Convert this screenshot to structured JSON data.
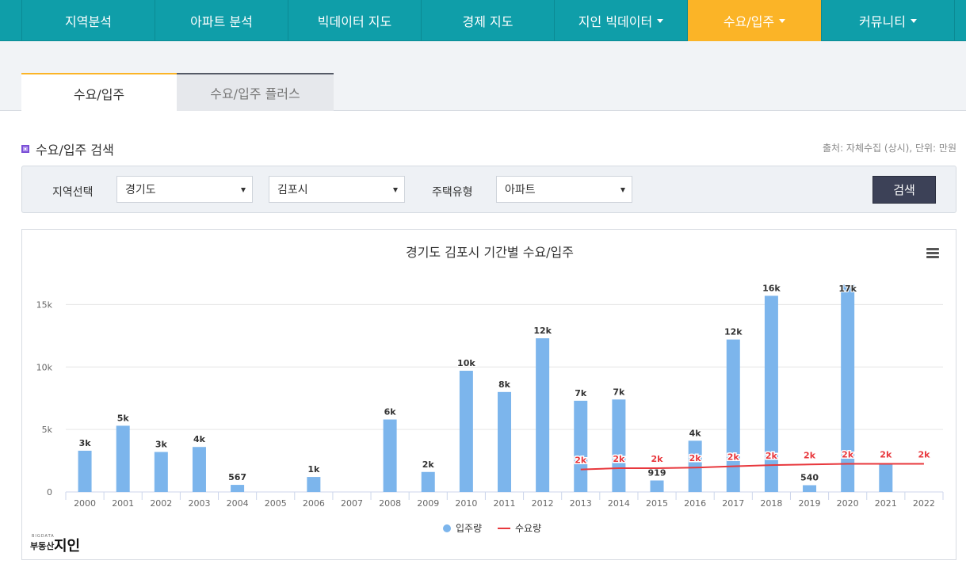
{
  "nav": {
    "items": [
      {
        "label": "지역분석",
        "dropdown": false,
        "active": false
      },
      {
        "label": "아파트 분석",
        "dropdown": false,
        "active": false
      },
      {
        "label": "빅데이터 지도",
        "dropdown": false,
        "active": false
      },
      {
        "label": "경제 지도",
        "dropdown": false,
        "active": false
      },
      {
        "label": "지인 빅데이터",
        "dropdown": true,
        "active": false
      },
      {
        "label": "수요/입주",
        "dropdown": true,
        "active": true
      },
      {
        "label": "커뮤니티",
        "dropdown": true,
        "active": false
      }
    ]
  },
  "tabs": {
    "active": "수요/입주",
    "inactive": "수요/입주 플러스"
  },
  "section": {
    "title": "수요/입주 검색",
    "source": "출처: 자체수집 (상시),  단위: 만원"
  },
  "search": {
    "region_label": "지역선택",
    "province": "경기도",
    "city": "김포시",
    "housing_label": "주택유형",
    "housing_type": "아파트",
    "button": "검색"
  },
  "logo": {
    "small": "BIGDATA",
    "main": "부동산",
    "big": "지인"
  },
  "colors": {
    "nav": "#0f9ea9",
    "nav_active": "#fbb427",
    "bar": "#7cb5ec",
    "line": "#e8383d"
  },
  "chart_data": {
    "type": "bar",
    "title": "경기도 김포시 기간별 수요/입주",
    "categories": [
      "2000",
      "2001",
      "2002",
      "2003",
      "2004",
      "2005",
      "2006",
      "2007",
      "2008",
      "2009",
      "2010",
      "2011",
      "2012",
      "2013",
      "2014",
      "2015",
      "2016",
      "2017",
      "2018",
      "2019",
      "2020",
      "2021",
      "2022"
    ],
    "ylim": [
      0,
      17500
    ],
    "yticks": [
      0,
      5000,
      10000,
      15000
    ],
    "ytick_labels": [
      "0",
      "5k",
      "10k",
      "15k"
    ],
    "grid": true,
    "legend_position": "bottom-center",
    "series": [
      {
        "name": "입주량",
        "type": "bar",
        "color": "#7cb5ec",
        "values": [
          3300,
          5300,
          3200,
          3600,
          567,
          null,
          1200,
          null,
          5800,
          1600,
          9700,
          8000,
          12300,
          7300,
          7400,
          919,
          4100,
          12200,
          15700,
          540,
          16600,
          2300,
          null
        ],
        "data_labels": [
          "3k",
          "5k",
          "3k",
          "4k",
          "567",
          "",
          "1k",
          "",
          "6k",
          "2k",
          "10k",
          "8k",
          "12k",
          "7k",
          "7k",
          "919",
          "4k",
          "12k",
          "16k",
          "540",
          "17k",
          "",
          ""
        ]
      },
      {
        "name": "수요량",
        "type": "line",
        "color": "#e8383d",
        "values": [
          null,
          null,
          null,
          null,
          null,
          null,
          null,
          null,
          null,
          null,
          null,
          null,
          null,
          1800,
          1900,
          1900,
          1950,
          2050,
          2150,
          2200,
          2250,
          2250,
          2250
        ],
        "data_labels": [
          "",
          "",
          "",
          "",
          "",
          "",
          "",
          "",
          "",
          "",
          "",
          "",
          "",
          "2k",
          "2k",
          "2k",
          "2k",
          "2k",
          "2k",
          "2k",
          "2k",
          "2k",
          "2k"
        ]
      }
    ]
  }
}
